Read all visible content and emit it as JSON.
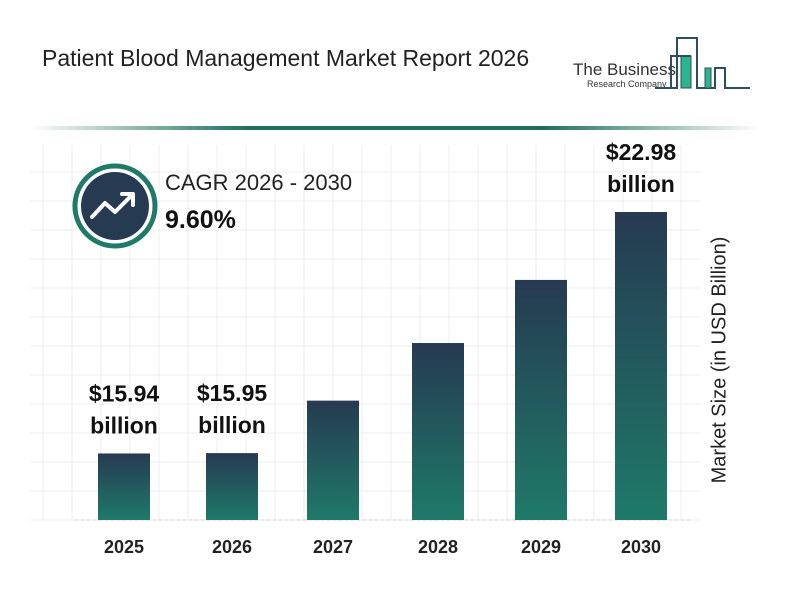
{
  "header": {
    "title": "Patient Blood Management Market Report 2026",
    "logo_text_line1": "The Business",
    "logo_text_line2": "Research Company"
  },
  "cagr": {
    "label": "CAGR 2026 - 2030",
    "value": "9.60%",
    "icon": "trending-up-icon"
  },
  "colors": {
    "bar_top": "#263a52",
    "bar_bottom": "#1f7a68",
    "accent": "#1f6e5c",
    "logo_green": "#2bb58e"
  },
  "chart_data": {
    "type": "bar",
    "title": "",
    "xlabel": "",
    "ylabel": "Market Size (in USD Billion)",
    "categories": [
      "2025",
      "2026",
      "2027",
      "2028",
      "2029",
      "2030"
    ],
    "values": [
      15.94,
      15.95,
      17.48,
      19.16,
      21.0,
      22.98
    ],
    "data_labels": [
      "$15.94 billion",
      "$15.95 billion",
      "",
      "",
      "",
      "$22.98 billion"
    ],
    "ylim": [
      14,
      22.98
    ],
    "grid": true,
    "legend": "none"
  }
}
